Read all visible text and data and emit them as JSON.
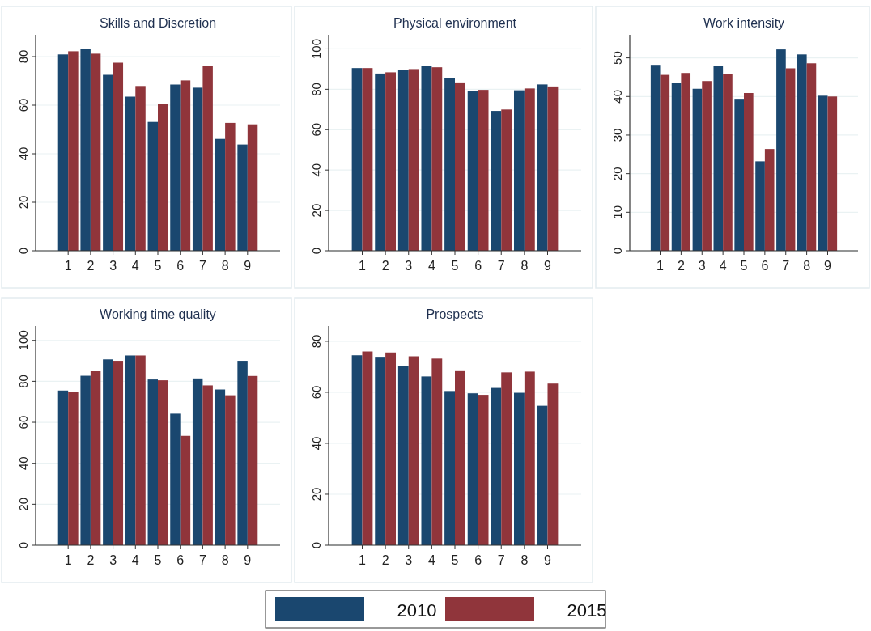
{
  "chart_data": [
    {
      "type": "bar",
      "title": "Skills and Discretion",
      "categories": [
        "1",
        "2",
        "3",
        "4",
        "5",
        "6",
        "7",
        "8",
        "9"
      ],
      "ylim": [
        0,
        89
      ],
      "yticks": [
        0,
        20,
        40,
        60,
        80
      ],
      "grid": "y",
      "legend": "bottom",
      "series": [
        {
          "name": "2010",
          "color": "#1a476f",
          "values": [
            80.9,
            83.1,
            72.5,
            63.5,
            53.1,
            68.5,
            67.2,
            46.1,
            43.8
          ]
        },
        {
          "name": "2015",
          "color": "#90353b",
          "values": [
            82.2,
            81.2,
            77.5,
            67.9,
            60.4,
            70.2,
            76.0,
            52.7,
            52.1
          ]
        }
      ]
    },
    {
      "type": "bar",
      "title": "Physical environment",
      "categories": [
        "1",
        "2",
        "3",
        "4",
        "5",
        "6",
        "7",
        "8",
        "9"
      ],
      "ylim": [
        0,
        107
      ],
      "yticks": [
        0,
        20,
        40,
        60,
        80,
        100
      ],
      "grid": "y",
      "series": [
        {
          "color": "#1a476f",
          "values": [
            90.5,
            87.8,
            89.7,
            91.4,
            85.5,
            79.2,
            69.3,
            79.5,
            82.4
          ]
        },
        {
          "color": "#90353b",
          "values": [
            90.5,
            88.4,
            90.0,
            90.9,
            83.4,
            79.7,
            70.0,
            80.4,
            81.4
          ]
        }
      ]
    },
    {
      "type": "bar",
      "title": "Work intensity",
      "categories": [
        "1",
        "2",
        "3",
        "4",
        "5",
        "6",
        "7",
        "8",
        "9"
      ],
      "ylim": [
        0,
        56
      ],
      "yticks": [
        0,
        10,
        20,
        30,
        40,
        50
      ],
      "grid": "y",
      "series": [
        {
          "color": "#1a476f",
          "values": [
            48.2,
            43.6,
            42.0,
            48.0,
            39.4,
            23.2,
            52.2,
            50.9,
            40.2
          ]
        },
        {
          "color": "#90353b",
          "values": [
            45.6,
            46.1,
            44.0,
            45.8,
            40.9,
            26.4,
            47.3,
            48.6,
            40.0
          ]
        }
      ]
    },
    {
      "type": "bar",
      "title": "Working time quality",
      "categories": [
        "1",
        "2",
        "3",
        "4",
        "5",
        "6",
        "7",
        "8",
        "9"
      ],
      "ylim": [
        0,
        107
      ],
      "yticks": [
        0,
        20,
        40,
        60,
        80,
        100
      ],
      "grid": "y",
      "series": [
        {
          "color": "#1a476f",
          "values": [
            75.5,
            82.7,
            90.7,
            92.6,
            80.9,
            64.2,
            81.4,
            76.0,
            90.0
          ]
        },
        {
          "color": "#90353b",
          "values": [
            74.8,
            85.2,
            90.0,
            92.6,
            80.5,
            53.4,
            78.0,
            73.2,
            82.6
          ]
        }
      ]
    },
    {
      "type": "bar",
      "title": "Prospects",
      "categories": [
        "1",
        "2",
        "3",
        "4",
        "5",
        "6",
        "7",
        "8",
        "9"
      ],
      "ylim": [
        0,
        86
      ],
      "yticks": [
        0,
        20,
        40,
        60,
        80
      ],
      "grid": "y",
      "series": [
        {
          "color": "#1a476f",
          "values": [
            74.5,
            73.9,
            70.3,
            66.2,
            60.5,
            59.6,
            61.7,
            59.8,
            54.7
          ]
        },
        {
          "color": "#90353b",
          "values": [
            76.0,
            75.6,
            74.1,
            73.2,
            68.6,
            59.0,
            67.8,
            68.1,
            63.4
          ]
        }
      ]
    }
  ]
}
